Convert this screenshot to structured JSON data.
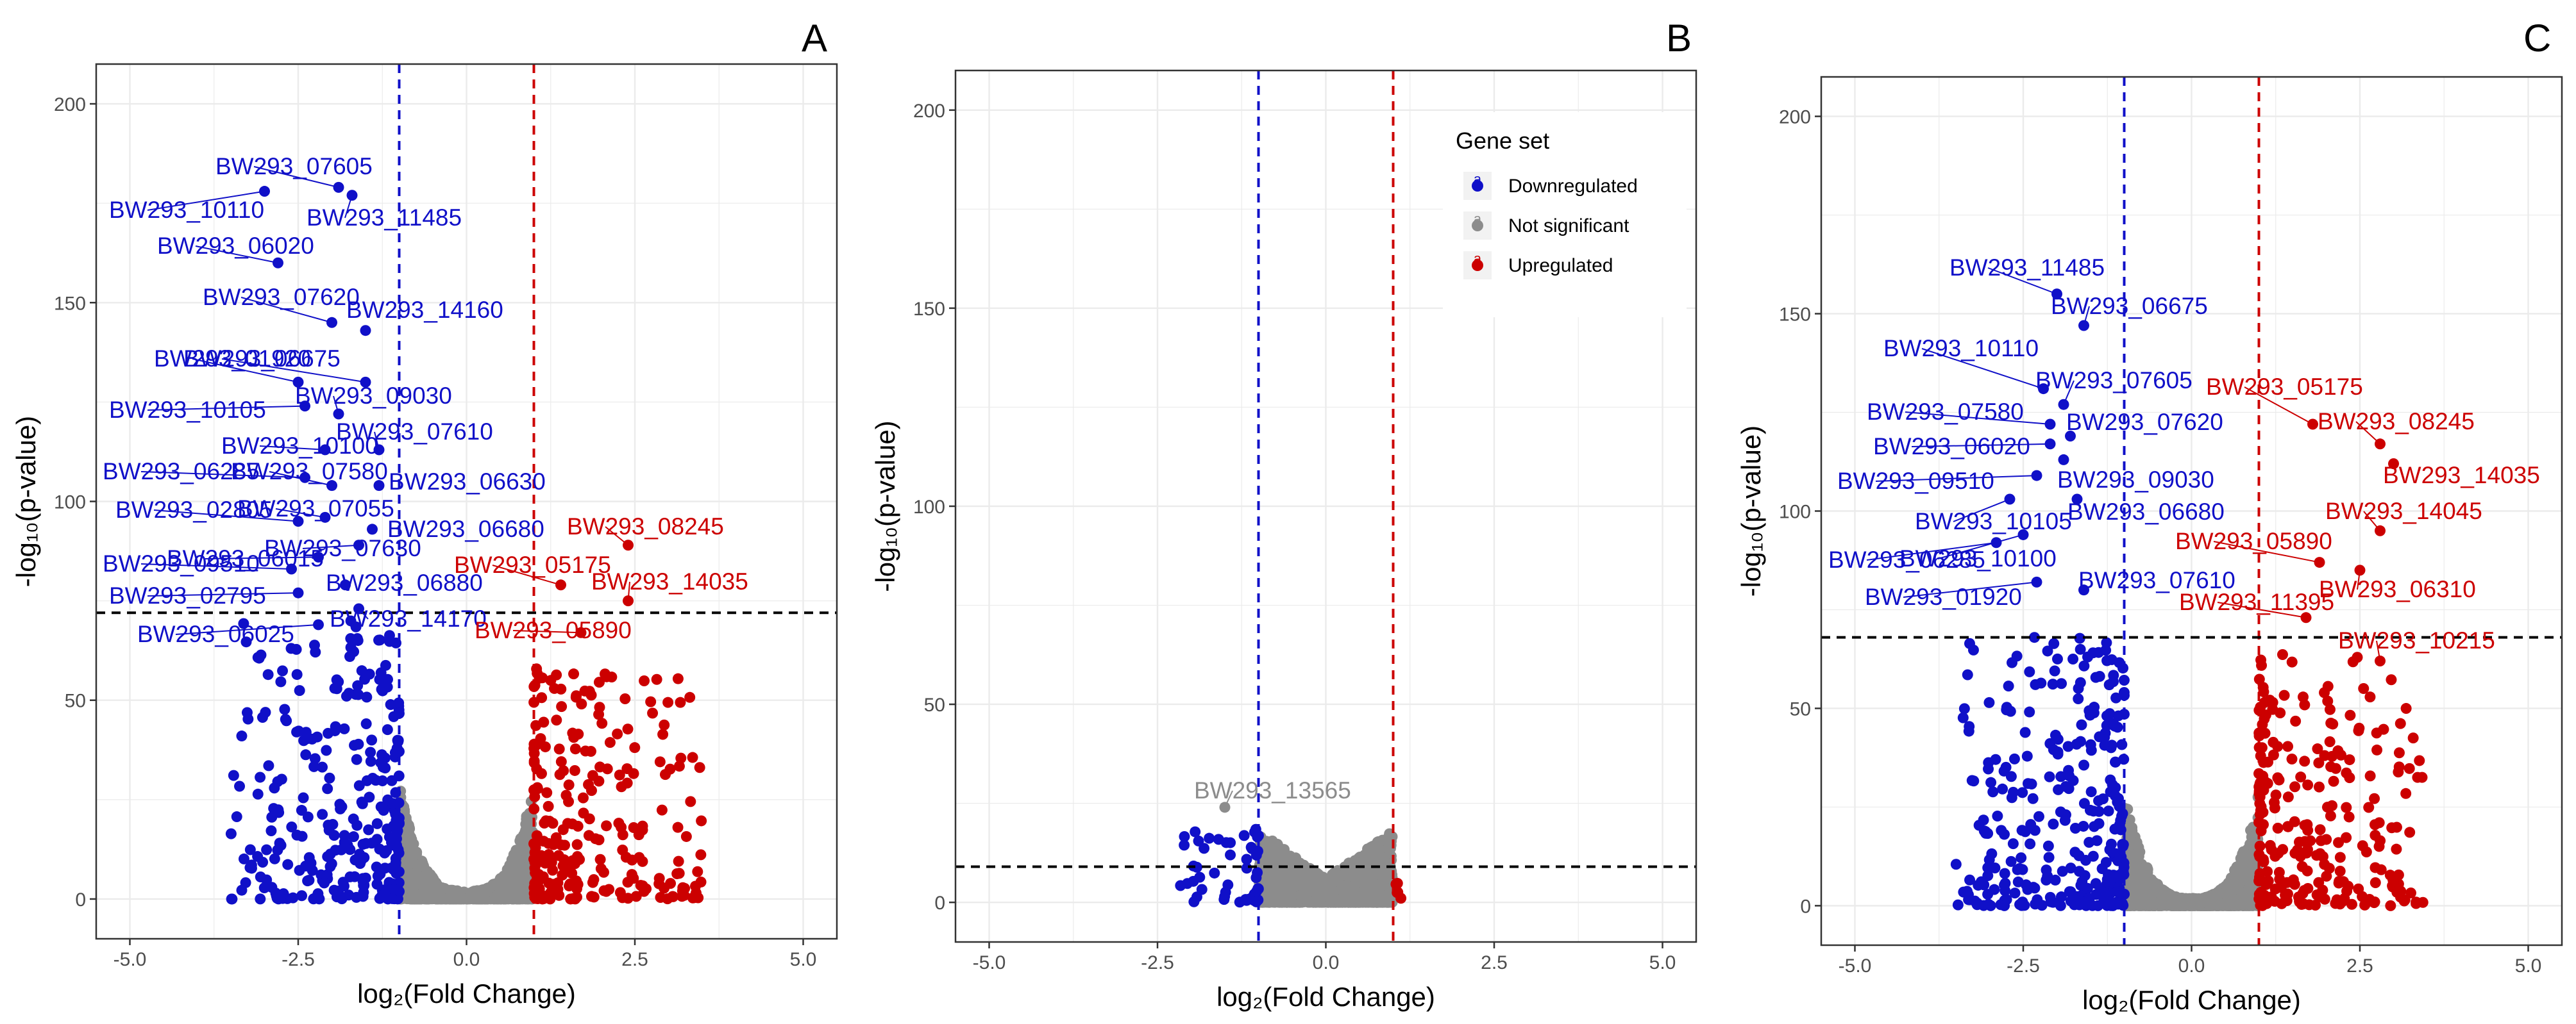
{
  "figure": {
    "y_axis_title": "-log₁₀(p-value)",
    "colors": {
      "downregulated": "#1010c8",
      "not_significant": "#8c8c8c",
      "upregulated": "#cc0000",
      "grid": "#ebebeb",
      "threshold_line": "#000000"
    },
    "legend": {
      "title": "Gene set",
      "entries": [
        {
          "key": "downregulated",
          "label": "Downregulated",
          "glyph": "a"
        },
        {
          "key": "not_significant",
          "label": "Not significant",
          "glyph": "a"
        },
        {
          "key": "upregulated",
          "label": "Upregulated",
          "glyph": "a"
        }
      ]
    }
  },
  "chart_data": [
    {
      "panel": "A",
      "type": "scatter",
      "title": "A",
      "xlabel": "log₂(Fold Change)",
      "ylabel": "-log₁₀(p-value)",
      "xlim": [
        -5.5,
        5.5
      ],
      "ylim": [
        -10,
        210
      ],
      "x_ticks": [
        -5.0,
        -2.5,
        0.0,
        2.5,
        5.0
      ],
      "x_tick_labels": [
        "-5.0",
        "-2.5",
        "0.0",
        "2.5",
        "5.0"
      ],
      "y_ticks": [
        0,
        50,
        100,
        150,
        200
      ],
      "y_tick_labels": [
        "0",
        "50",
        "100",
        "150",
        "200"
      ],
      "grid": true,
      "legend": "none",
      "fc_thresholds": [
        -1,
        1
      ],
      "p_threshold": 72,
      "cloud": {
        "down_max": 70,
        "up_max": 60,
        "seed": 11
      },
      "labeled_points": [
        {
          "label": "BW293_07605",
          "x": -1.9,
          "y": 179,
          "group": "down"
        },
        {
          "label": "BW293_10110",
          "x": -3.0,
          "y": 178,
          "group": "down"
        },
        {
          "label": "BW293_11485",
          "x": -1.7,
          "y": 177,
          "group": "down"
        },
        {
          "label": "BW293_06020",
          "x": -2.8,
          "y": 160,
          "group": "down"
        },
        {
          "label": "BW293_07620",
          "x": -2.0,
          "y": 145,
          "group": "down"
        },
        {
          "label": "BW293_14160",
          "x": -1.5,
          "y": 143,
          "group": "down"
        },
        {
          "label": "BW293_06675",
          "x": -1.5,
          "y": 130,
          "group": "down"
        },
        {
          "label": "BW293_01920",
          "x": -2.5,
          "y": 130,
          "group": "down"
        },
        {
          "label": "BW293_09030",
          "x": -1.9,
          "y": 122,
          "group": "down"
        },
        {
          "label": "BW293_10105",
          "x": -2.4,
          "y": 124,
          "group": "down"
        },
        {
          "label": "BW293_07610",
          "x": -1.3,
          "y": 113,
          "group": "down"
        },
        {
          "label": "BW293_10100",
          "x": -2.1,
          "y": 113,
          "group": "down"
        },
        {
          "label": "BW293_06630",
          "x": -1.3,
          "y": 104,
          "group": "down"
        },
        {
          "label": "BW293_06285",
          "x": -2.4,
          "y": 106,
          "group": "down"
        },
        {
          "label": "BW293_07580",
          "x": -2.0,
          "y": 104,
          "group": "down"
        },
        {
          "label": "BW293_07055",
          "x": -2.1,
          "y": 96,
          "group": "down"
        },
        {
          "label": "BW293_02805",
          "x": -2.5,
          "y": 95,
          "group": "down"
        },
        {
          "label": "BW293_06680",
          "x": -1.4,
          "y": 93,
          "group": "down"
        },
        {
          "label": "BW293_07630",
          "x": -1.6,
          "y": 89,
          "group": "down"
        },
        {
          "label": "BW293_06015",
          "x": -2.2,
          "y": 86,
          "group": "down"
        },
        {
          "label": "BW293_09510",
          "x": -2.6,
          "y": 83,
          "group": "down"
        },
        {
          "label": "BW293_06880",
          "x": -1.8,
          "y": 79,
          "group": "down"
        },
        {
          "label": "BW293_02795",
          "x": -2.5,
          "y": 77,
          "group": "down"
        },
        {
          "label": "BW293_14170",
          "x": -1.6,
          "y": 73,
          "group": "down"
        },
        {
          "label": "BW293_06025",
          "x": -2.2,
          "y": 69,
          "group": "down"
        },
        {
          "label": "BW293_08245",
          "x": 2.4,
          "y": 89,
          "group": "up"
        },
        {
          "label": "BW293_05175",
          "x": 1.4,
          "y": 79,
          "group": "up"
        },
        {
          "label": "BW293_14035",
          "x": 2.4,
          "y": 75,
          "group": "up"
        },
        {
          "label": "BW293_05890",
          "x": 1.7,
          "y": 67,
          "group": "up"
        }
      ]
    },
    {
      "panel": "B",
      "type": "scatter",
      "title": "B",
      "xlabel": "log₂(Fold Change)",
      "ylabel": "-log₁₀(p-value)",
      "xlim": [
        -5.5,
        5.5
      ],
      "ylim": [
        -10,
        210
      ],
      "x_ticks": [
        -5.0,
        -2.5,
        0.0,
        2.5,
        5.0
      ],
      "x_tick_labels": [
        "-5.0",
        "-2.5",
        "0.0",
        "2.5",
        "5.0"
      ],
      "y_ticks": [
        0,
        50,
        100,
        150,
        200
      ],
      "y_tick_labels": [
        "0",
        "50",
        "100",
        "150",
        "200"
      ],
      "grid": true,
      "legend": "top-right",
      "fc_thresholds": [
        -1,
        1
      ],
      "p_threshold": 9,
      "cloud": {
        "down_max": 25,
        "up_max": 6,
        "seed": 23,
        "mode": "low"
      },
      "labeled_points": [
        {
          "label": "BW293_13565",
          "x": -1.5,
          "y": 24,
          "group": "ns"
        }
      ]
    },
    {
      "panel": "C",
      "type": "scatter",
      "title": "C",
      "xlabel": "log₂(Fold Change)",
      "ylabel": "-log₁₀(p-value)",
      "xlim": [
        -5.5,
        5.5
      ],
      "ylim": [
        -10,
        210
      ],
      "x_ticks": [
        -5.0,
        -2.5,
        0.0,
        2.5,
        5.0
      ],
      "x_tick_labels": [
        "-5.0",
        "-2.5",
        "0.0",
        "2.5",
        "5.0"
      ],
      "y_ticks": [
        0,
        50,
        100,
        150,
        200
      ],
      "y_tick_labels": [
        "0",
        "50",
        "100",
        "150",
        "200"
      ],
      "grid": true,
      "legend": "none",
      "fc_thresholds": [
        -1,
        1
      ],
      "p_threshold": 68,
      "cloud": {
        "down_max": 68,
        "up_max": 64,
        "seed": 37
      },
      "labeled_points": [
        {
          "label": "BW293_11485",
          "x": -2.0,
          "y": 155,
          "group": "down"
        },
        {
          "label": "BW293_06675",
          "x": -1.6,
          "y": 147,
          "group": "down"
        },
        {
          "label": "BW293_10110",
          "x": -2.2,
          "y": 131,
          "group": "down"
        },
        {
          "label": "BW293_07605",
          "x": -1.9,
          "y": 127,
          "group": "down"
        },
        {
          "label": "BW293_07580",
          "x": -2.1,
          "y": 122,
          "group": "down"
        },
        {
          "label": "BW293_07620",
          "x": -1.8,
          "y": 119,
          "group": "down"
        },
        {
          "label": "BW293_06020",
          "x": -2.1,
          "y": 117,
          "group": "down"
        },
        {
          "label": "BW293_09510",
          "x": -2.3,
          "y": 109,
          "group": "down"
        },
        {
          "label": "BW293_09030",
          "x": -1.9,
          "y": 113,
          "group": "down"
        },
        {
          "label": "BW293_10105",
          "x": -2.7,
          "y": 103,
          "group": "down"
        },
        {
          "label": "BW293_06680",
          "x": -1.7,
          "y": 103,
          "group": "down"
        },
        {
          "label": "BW293_06285",
          "x": -2.9,
          "y": 92,
          "group": "down"
        },
        {
          "label": "BW293_10100",
          "x": -2.5,
          "y": 94,
          "group": "down"
        },
        {
          "label": "BW293_07610",
          "x": -1.6,
          "y": 80,
          "group": "down"
        },
        {
          "label": "BW293_01920",
          "x": -2.3,
          "y": 82,
          "group": "down"
        },
        {
          "label": "BW293_05175",
          "x": 1.8,
          "y": 122,
          "group": "up"
        },
        {
          "label": "BW293_08245",
          "x": 2.8,
          "y": 117,
          "group": "up"
        },
        {
          "label": "BW293_14035",
          "x": 3.0,
          "y": 112,
          "group": "up"
        },
        {
          "label": "BW293_14045",
          "x": 2.8,
          "y": 95,
          "group": "up"
        },
        {
          "label": "BW293_05890",
          "x": 1.9,
          "y": 87,
          "group": "up"
        },
        {
          "label": "BW293_06310",
          "x": 2.5,
          "y": 85,
          "group": "up"
        },
        {
          "label": "BW293_11395",
          "x": 1.7,
          "y": 73,
          "group": "up"
        },
        {
          "label": "BW293_10215",
          "x": 2.8,
          "y": 62,
          "group": "up"
        }
      ]
    }
  ]
}
